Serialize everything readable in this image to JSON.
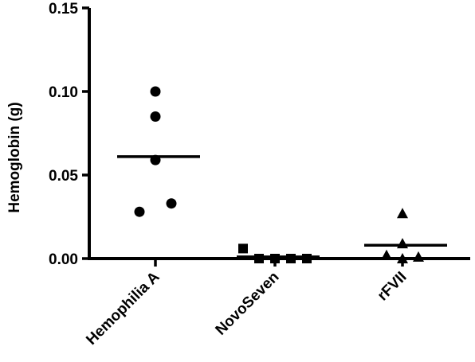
{
  "chart_data": {
    "type": "scatter",
    "ylabel": "Hemoglobin (g)",
    "xlabel": "",
    "ylim": [
      0,
      0.15
    ],
    "yticks": [
      {
        "value": 0.0,
        "label": "0.00"
      },
      {
        "value": 0.05,
        "label": "0.05"
      },
      {
        "value": 0.1,
        "label": "0.10"
      },
      {
        "value": 0.15,
        "label": "0.15"
      }
    ],
    "categories": [
      "Hemophilia A",
      "NovoSeven",
      "rFVII"
    ],
    "groups": [
      {
        "category": "Hemophilia A",
        "marker": "circle",
        "points": [
          {
            "offset": 0,
            "value": 0.1
          },
          {
            "offset": 0,
            "value": 0.085
          },
          {
            "offset": 0,
            "value": 0.059
          },
          {
            "offset": 1,
            "value": 0.033
          },
          {
            "offset": -1,
            "value": 0.028
          }
        ],
        "mean": 0.061
      },
      {
        "category": "NovoSeven",
        "marker": "square",
        "points": [
          {
            "offset": -2,
            "value": 0.006
          },
          {
            "offset": -1,
            "value": 0.0
          },
          {
            "offset": 0,
            "value": 0.0
          },
          {
            "offset": 1,
            "value": 0.0
          },
          {
            "offset": 2,
            "value": 0.0
          }
        ],
        "mean": 0.001
      },
      {
        "category": "rFVII",
        "marker": "triangle",
        "points": [
          {
            "offset": 0,
            "value": 0.027
          },
          {
            "offset": 0,
            "value": 0.009
          },
          {
            "offset": -1,
            "value": 0.002
          },
          {
            "offset": 0,
            "value": 0.0
          },
          {
            "offset": 1,
            "value": 0.001
          }
        ],
        "mean": 0.008
      }
    ],
    "grid": false,
    "legend": "none",
    "colors": {
      "marker": "#000000",
      "axis": "#000000"
    }
  }
}
